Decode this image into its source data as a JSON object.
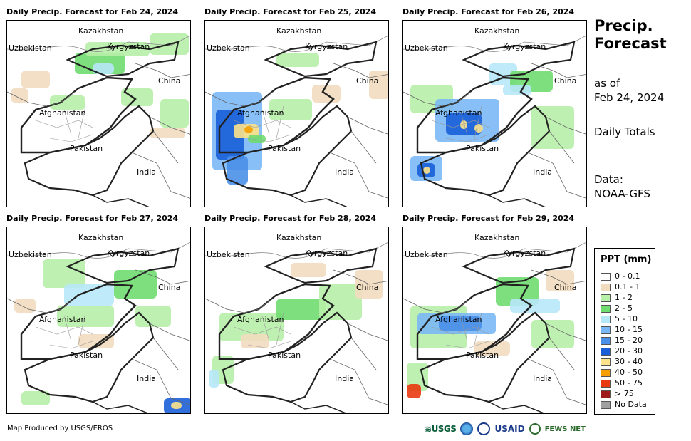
{
  "panels": [
    {
      "title": "Daily Precip. Forecast for Feb 24, 2024"
    },
    {
      "title": "Daily Precip. Forecast for Feb 25, 2024"
    },
    {
      "title": "Daily Precip. Forecast for Feb 26, 2024"
    },
    {
      "title": "Daily Precip. Forecast for Feb 27, 2024"
    },
    {
      "title": "Daily Precip. Forecast for Feb 28, 2024"
    },
    {
      "title": "Daily Precip. Forecast for Feb 29, 2024"
    }
  ],
  "labels": {
    "kazakhstan": "Kazakhstan",
    "uzbekistan": "Uzbekistan",
    "kyrgyzstan": "Kyrgyzstan",
    "china": "China",
    "afghanistan": "Afghanistan",
    "pakistan": "Pakistan",
    "india": "India"
  },
  "sidebar": {
    "title_line1": "Precip.",
    "title_line2": "Forecast",
    "asof_line1": "as of",
    "asof_line2": "Feb 24, 2024",
    "totals": "Daily Totals",
    "data_line1": "Data:",
    "data_line2": "NOAA-GFS"
  },
  "legend": {
    "title": "PPT (mm)",
    "items": [
      {
        "label": "0 - 0.1",
        "color": "#ffffff"
      },
      {
        "label": "0.1 - 1",
        "color": "#f2dcbf"
      },
      {
        "label": "1 - 2",
        "color": "#b7f0a8"
      },
      {
        "label": "2 - 5",
        "color": "#6fdc6f"
      },
      {
        "label": "5 - 10",
        "color": "#b7e8f8"
      },
      {
        "label": "10 - 15",
        "color": "#7ab8f5"
      },
      {
        "label": "15 - 20",
        "color": "#4a8fe8"
      },
      {
        "label": "20 - 30",
        "color": "#1a5fd8"
      },
      {
        "label": "30 - 40",
        "color": "#fde38a"
      },
      {
        "label": "40 - 50",
        "color": "#f5a000"
      },
      {
        "label": "50 - 75",
        "color": "#e83a10"
      },
      {
        "label": "> 75",
        "color": "#9e1a1a"
      },
      {
        "label": "No Data",
        "color": "#a0a0a0"
      }
    ]
  },
  "footer": {
    "credit": "Map Produced by USGS/EROS",
    "logo_usgs": "USGS",
    "logo_usaid": "USAID",
    "logo_fews": "FEWS NET"
  }
}
